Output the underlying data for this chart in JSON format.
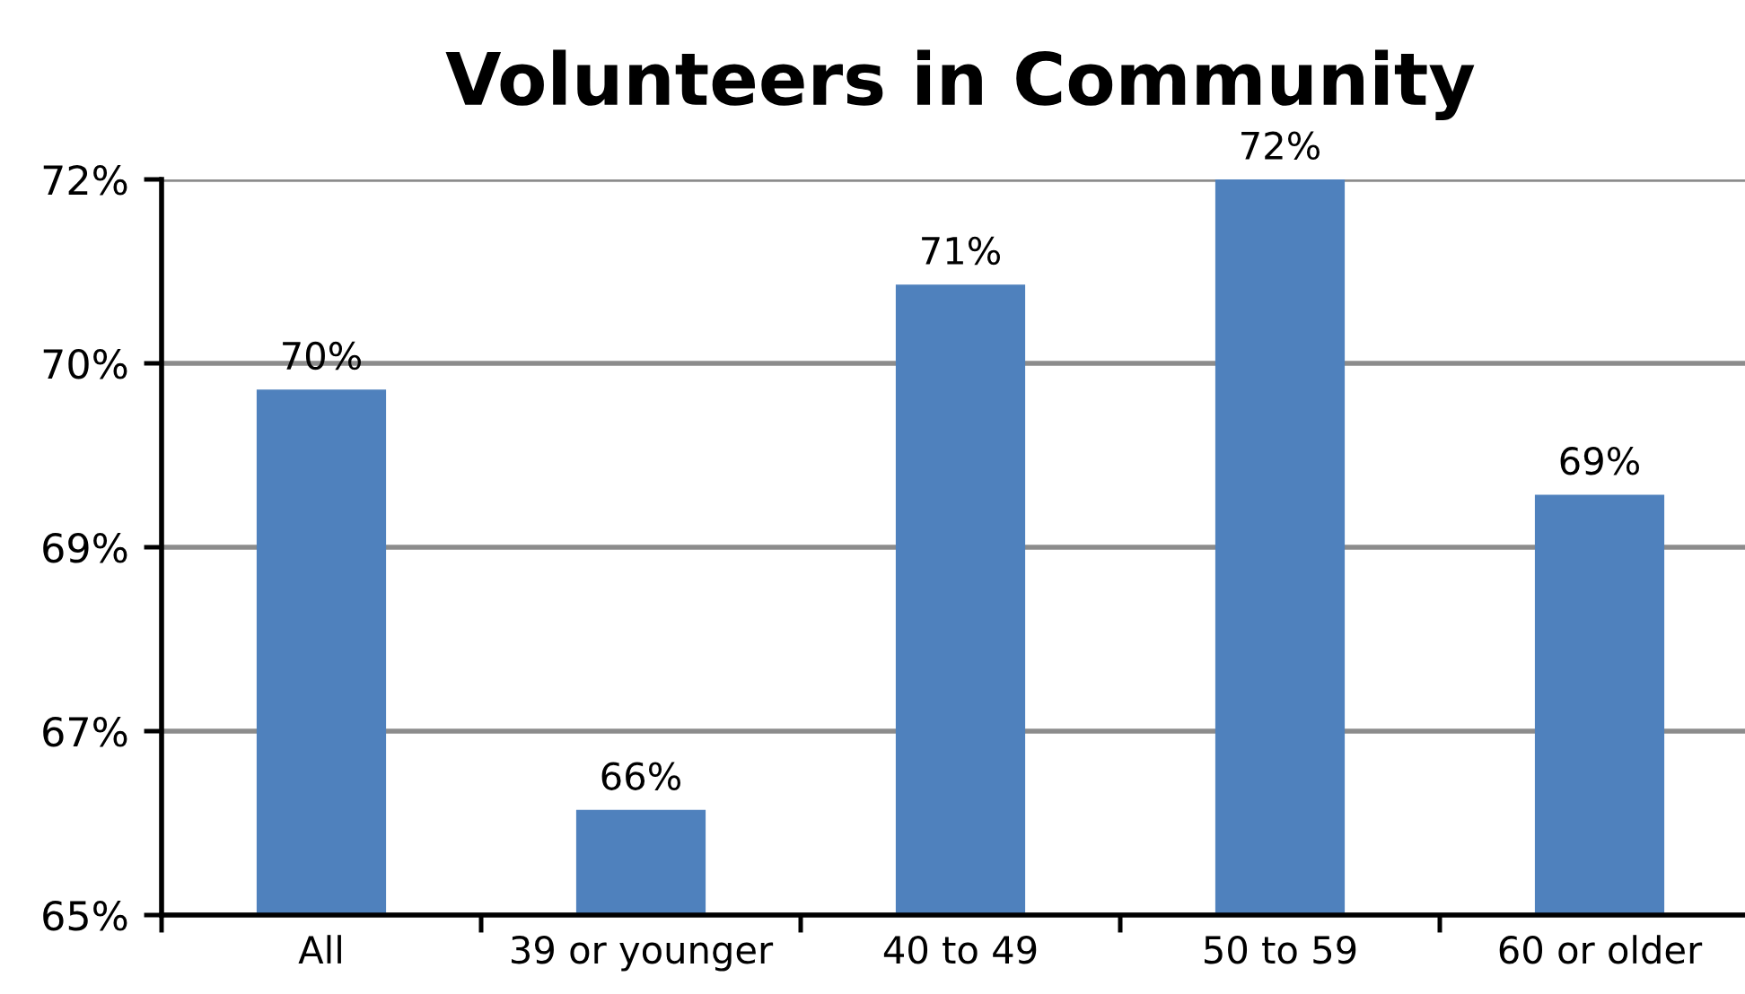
{
  "chart_data": {
    "type": "bar",
    "title": "Volunteers in Community",
    "categories": [
      "All",
      "39 or younger",
      "40 to 49",
      "50 to 59",
      "60 or older"
    ],
    "values": [
      70,
      66,
      71,
      72,
      69
    ],
    "color": "#4f81bd",
    "value_labels": [
      "70%",
      "66%",
      "71%",
      "72%",
      "69%"
    ],
    "ylim": [
      65,
      72
    ],
    "yticks": [
      {
        "value": 65,
        "label": "65%"
      },
      {
        "value": 66.75,
        "label": "67%"
      },
      {
        "value": 68.5,
        "label": "69%"
      },
      {
        "value": 70.25,
        "label": "70%"
      },
      {
        "value": 72,
        "label": "72%"
      }
    ],
    "grid": "y"
  }
}
